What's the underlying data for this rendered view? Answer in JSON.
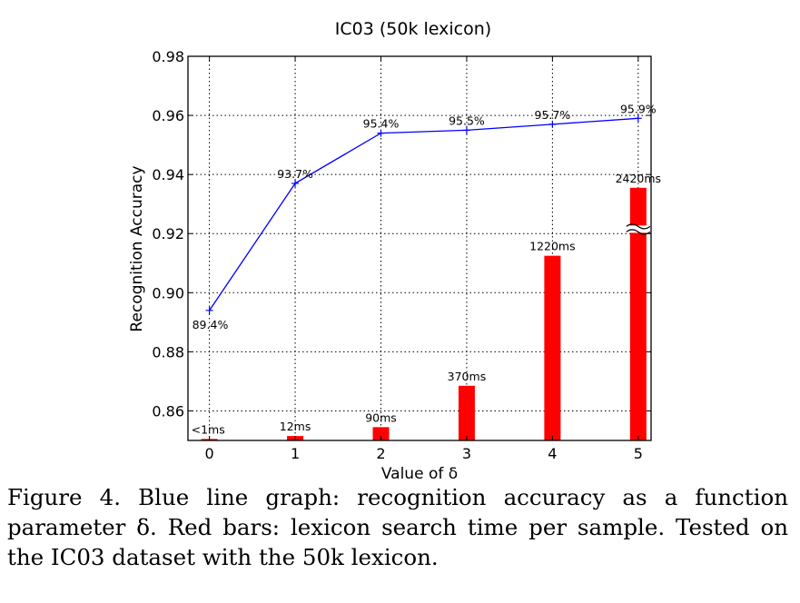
{
  "chart_data": {
    "type": "bar+line",
    "title": "IC03 (50k lexicon)",
    "xlabel": "Value of δ",
    "ylabel": "Recognition Accuracy",
    "x": [
      0,
      1,
      2,
      3,
      4,
      5
    ],
    "x_tick_labels": [
      "0",
      "1",
      "2",
      "3",
      "4",
      "5"
    ],
    "xlim": [
      -0.25,
      5.15
    ],
    "ylim": [
      0.85,
      0.98
    ],
    "y_ticks": [
      0.86,
      0.88,
      0.9,
      0.92,
      0.94,
      0.96,
      0.98
    ],
    "y_tick_labels": [
      "0.86",
      "0.88",
      "0.90",
      "0.92",
      "0.94",
      "0.96",
      "0.98"
    ],
    "grid": true,
    "accuracy_line": {
      "color": "#0000ff",
      "values": [
        0.894,
        0.937,
        0.954,
        0.955,
        0.957,
        0.959
      ],
      "labels": [
        "89.4%",
        "93.7%",
        "95.4%",
        "95.5%",
        "95.7%",
        "95.9%"
      ]
    },
    "search_time_bars": {
      "color": "#ff0000",
      "bar_top_on_accuracy_axis": [
        0.8505,
        0.8515,
        0.8545,
        0.8685,
        0.9125,
        0.9355
      ],
      "labels": [
        "<1ms",
        "12ms",
        "90ms",
        "370ms",
        "1220ms",
        "2420ms"
      ],
      "axis_break_on_last_bar": true
    }
  },
  "caption": "Figure 4. Blue line graph: recognition accuracy as a function parameter δ. Red bars: lexicon search time per sample. Tested on the IC03 dataset with the 50k lexicon."
}
